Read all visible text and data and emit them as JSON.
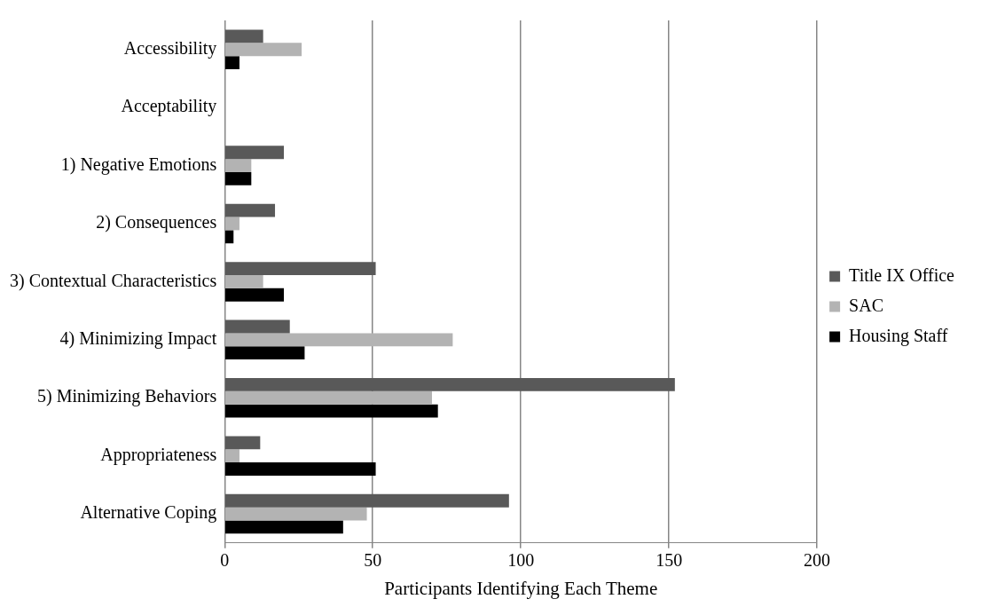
{
  "chart_data": {
    "type": "bar",
    "orientation": "horizontal",
    "xlabel": "Participants Identifying Each Theme",
    "categories": [
      "Accessibility",
      "Acceptability",
      "1) Negative Emotions",
      "2) Consequences",
      "3) Contextual Characteristics",
      "4) Minimizing Impact",
      "5) Minimizing Behaviors",
      "Appropriateness",
      "Alternative Coping"
    ],
    "series": [
      {
        "name": "Title IX Office",
        "color": "#595959",
        "values": [
          13,
          0,
          20,
          17,
          51,
          22,
          152,
          12,
          96
        ]
      },
      {
        "name": "SAC",
        "color": "#b3b3b3",
        "values": [
          26,
          0,
          9,
          5,
          13,
          77,
          70,
          5,
          48
        ]
      },
      {
        "name": "Housing Staff",
        "color": "#000000",
        "values": [
          5,
          0,
          9,
          3,
          20,
          27,
          72,
          51,
          40
        ]
      }
    ],
    "xlim": [
      0,
      200
    ],
    "xticks": [
      0,
      50,
      100,
      150,
      200
    ],
    "grid": "x",
    "legend": "right"
  }
}
